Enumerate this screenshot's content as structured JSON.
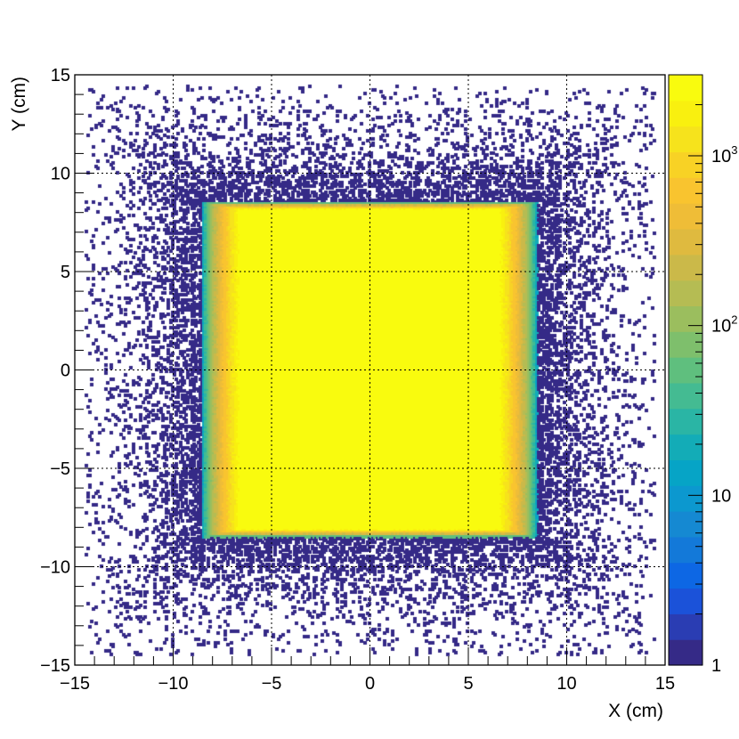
{
  "chart_data": {
    "type": "heatmap",
    "title": "",
    "xlabel": "X (cm)",
    "ylabel": "Y (cm)",
    "xlim": [
      -15,
      15
    ],
    "ylim": [
      -15,
      15
    ],
    "xticks": [
      -15,
      -10,
      -5,
      0,
      5,
      10,
      15
    ],
    "yticks": [
      -15,
      -10,
      -5,
      0,
      5,
      10,
      15
    ],
    "xtick_labels": [
      "−15",
      "−10",
      "−5",
      "0",
      "5",
      "10",
      "15"
    ],
    "ytick_labels": [
      "−15",
      "−10",
      "−5",
      "0",
      "5",
      "10",
      "15"
    ],
    "grid": true,
    "colorbar": {
      "scale": "log",
      "range": [
        1,
        3000
      ],
      "tick_labels": [
        {
          "value": 1,
          "text": "1"
        },
        {
          "value": 10,
          "text": "10"
        },
        {
          "value": 100,
          "text": "10",
          "sup": "2"
        },
        {
          "value": 1000,
          "text": "10",
          "sup": "3"
        }
      ],
      "palette": [
        "#352a87",
        "#2a3db3",
        "#1b52d9",
        "#0d67e4",
        "#1379d9",
        "#1589d2",
        "#0c98cf",
        "#06a4c6",
        "#13acb7",
        "#2ab5a5",
        "#44bb92",
        "#5fbf7e",
        "#7ebf6c",
        "#9bbe5e",
        "#b5bc53",
        "#cbb949",
        "#dfba3f",
        "#efbd37",
        "#f9c42f",
        "#f8d225",
        "#f6e31c",
        "#f9f00f",
        "#f9fb0e"
      ]
    },
    "distribution": {
      "description_values": "counts per bin",
      "core_region_x": [
        -8.5,
        8.5
      ],
      "core_region_y": [
        -8.5,
        8.5
      ],
      "core_peak_count": 3000,
      "plateau_region_x": [
        -6.5,
        6.5
      ],
      "plateau_region_y": [
        -8.0,
        8.0
      ],
      "halo_extent": [
        -14.5,
        14.5
      ],
      "halo_count": 1
    }
  }
}
